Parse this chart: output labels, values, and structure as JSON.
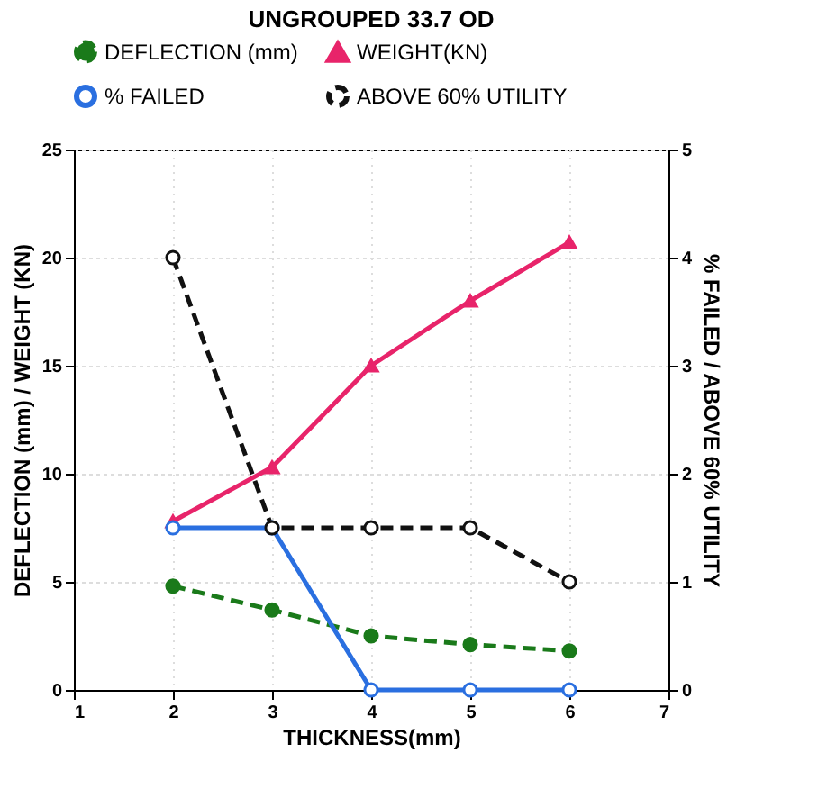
{
  "chart_data": {
    "type": "line",
    "title": "UNGROUPED 33.7 OD",
    "xlabel": "THICKNESS(mm)",
    "ylabel": "DEFLECTION (mm) / WEIGHT (KN)",
    "y2label": "% FAILED / ABOVE 60% UTILITY",
    "x": [
      2,
      3,
      4,
      5,
      6
    ],
    "xlim": [
      1,
      7
    ],
    "xticks": [
      1,
      2,
      3,
      4,
      5,
      6,
      7
    ],
    "ylim": [
      0,
      25
    ],
    "yticks": [
      0,
      5,
      10,
      15,
      20,
      25
    ],
    "y2lim": [
      0,
      5
    ],
    "y2ticks": [
      0,
      1,
      2,
      3,
      4,
      5
    ],
    "grid": true,
    "legend": "top",
    "series": [
      {
        "name": "DEFLECTION (mm)",
        "color": "#1a7a1a",
        "values": [
          4.8,
          3.7,
          2.5,
          2.1,
          1.8
        ],
        "marker": "circle",
        "line_style": "dashed"
      },
      {
        "name": "WEIGHT(KN)",
        "color": "#e8246a",
        "values": [
          7.8,
          10.3,
          15,
          18,
          20.7
        ],
        "marker": "triangle",
        "line_style": "solid"
      },
      {
        "name": "% FAILED",
        "color": "#2a6fe0",
        "values": [
          1.5,
          1.5,
          0,
          0,
          0
        ],
        "marker": "circle",
        "line_style": "solid",
        "axis": "y2"
      },
      {
        "name": "ABOVE 60% UTILITY",
        "color": "#111111",
        "values": [
          4,
          1.5,
          1.5,
          1.5,
          1
        ],
        "marker": "circle",
        "line_style": "dashed",
        "axis": "y2"
      }
    ]
  }
}
